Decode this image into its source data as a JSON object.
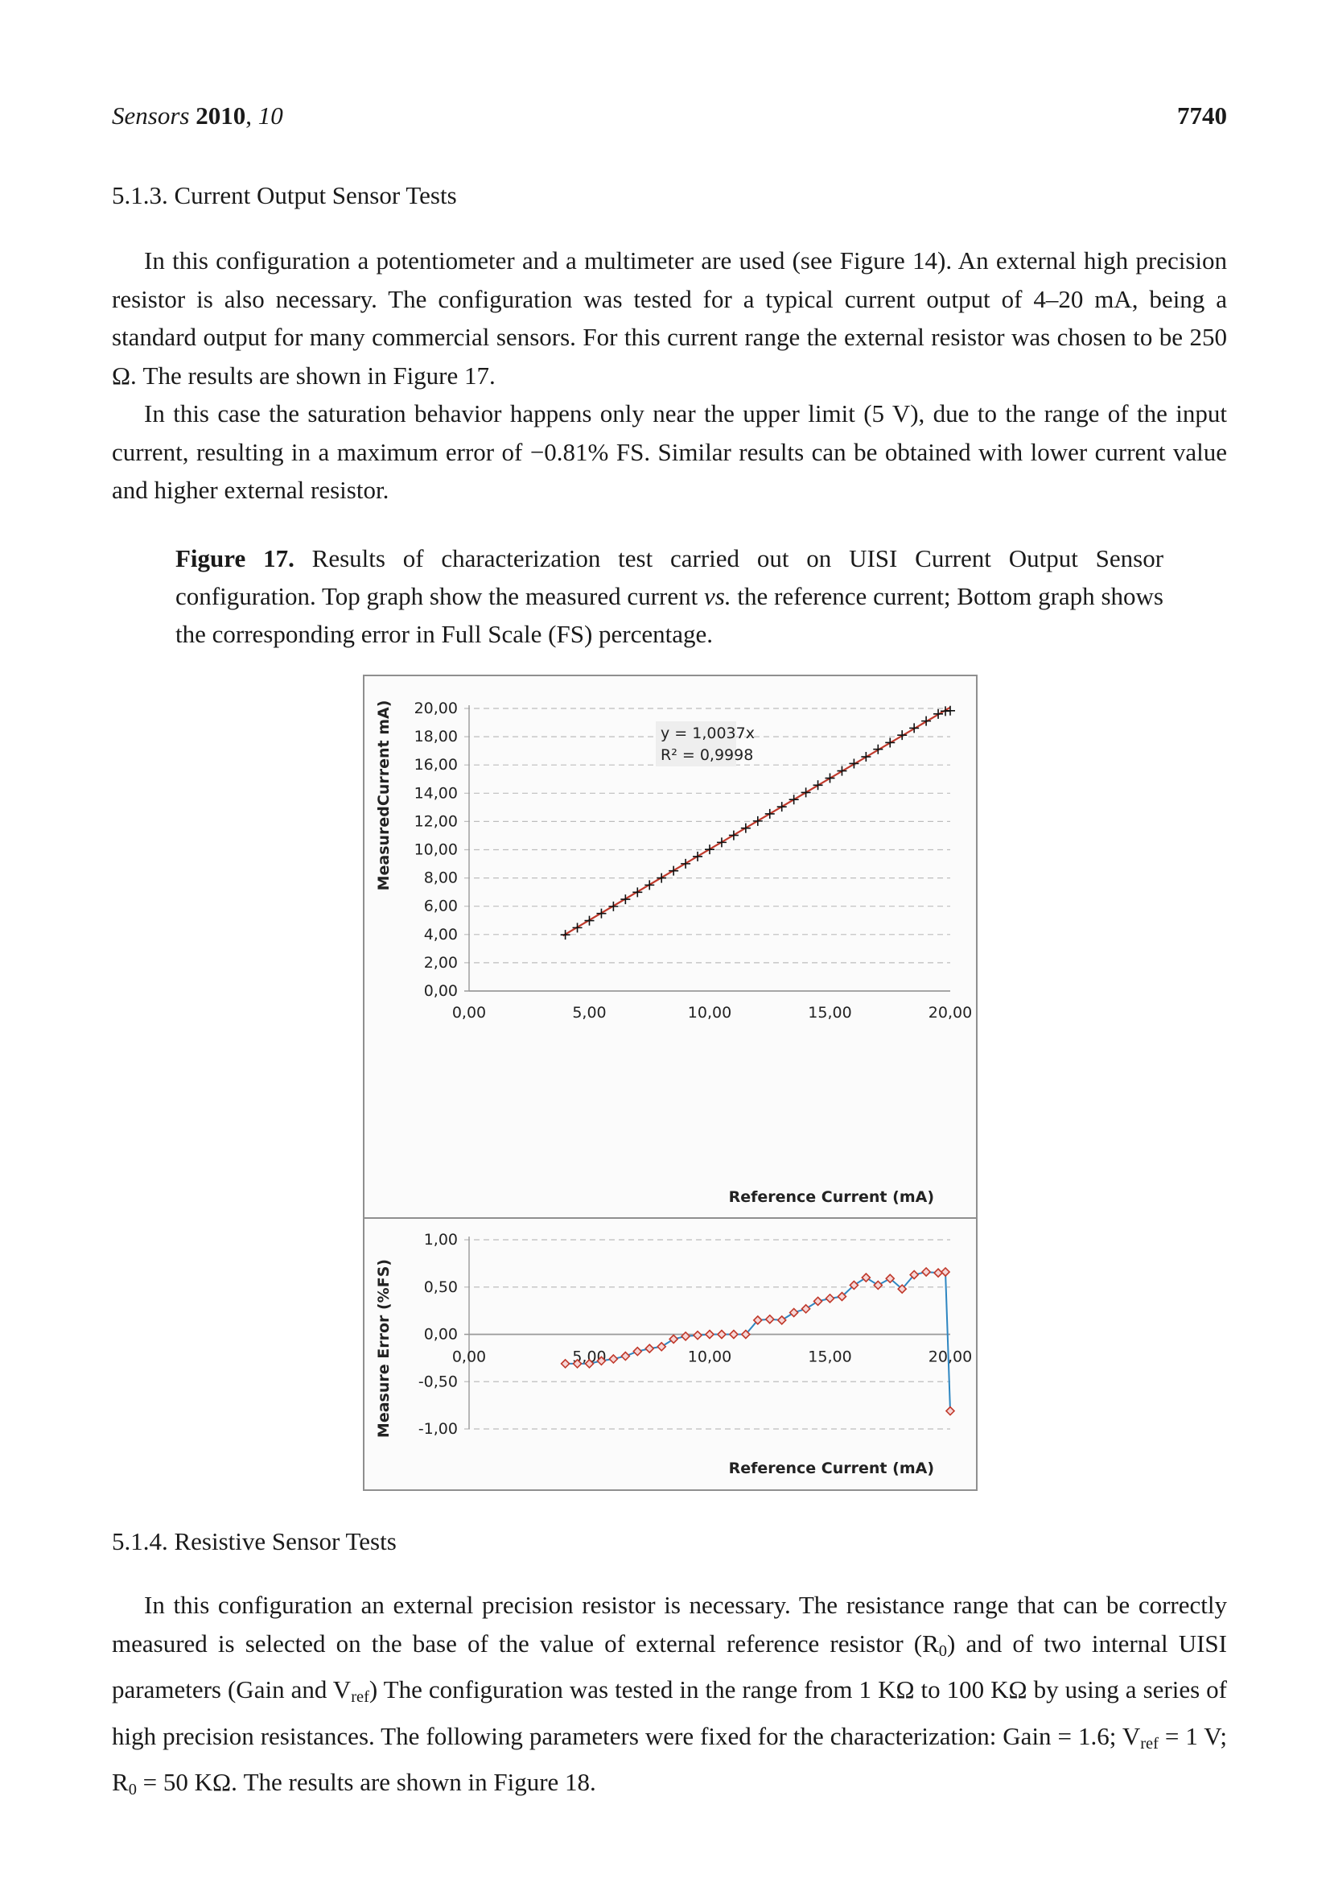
{
  "header": {
    "journal": "Sensors",
    "year": "2010",
    "volume": "10",
    "page": "7740"
  },
  "section_513": {
    "title": "5.1.3. Current Output Sensor Tests",
    "p1": "In this configuration a potentiometer and a multimeter are used (see Figure 14). An external high precision resistor is also necessary. The configuration was tested for a typical current output of 4–20 mA, being a standard output for many commercial sensors. For this current range the external resistor was chosen to be 250 Ω. The results are shown in Figure 17.",
    "p2": "In this case the saturation behavior happens only near the upper limit (5 V), due to the range of the input current, resulting in a maximum error of −0.81% FS. Similar results can be obtained with lower current value and higher external resistor."
  },
  "figure": {
    "label": "Figure 17.",
    "caption_a": "Results of characterization test carried out on UISI Current Output Sensor configuration. Top graph show the measured current ",
    "caption_vs": "vs.",
    "caption_b": " the reference current; Bottom graph shows the corresponding error in Full Scale (FS) percentage."
  },
  "chart_data": [
    {
      "type": "scatter",
      "ylabel": "MeasuredCurrent  mA)",
      "xlabel": "Reference Current (mA)",
      "xlim": [
        0,
        20
      ],
      "ylim": [
        0,
        20
      ],
      "x_ticks": [
        "0,00",
        "5,00",
        "10,00",
        "15,00",
        "20,00"
      ],
      "y_ticks": [
        "0,00",
        "2,00",
        "4,00",
        "6,00",
        "8,00",
        "10,00",
        "12,00",
        "14,00",
        "16,00",
        "18,00",
        "20,00"
      ],
      "grid": "horizontal dashed",
      "marker": "plus",
      "trendline": {
        "equation": "y = 1,0037x",
        "r2": "R² = 0,9998",
        "slope": 1.0037,
        "color": "#c0392b"
      },
      "x": [
        4.0,
        4.5,
        5.0,
        5.5,
        6.0,
        6.5,
        7.0,
        7.5,
        8.0,
        8.5,
        9.0,
        9.5,
        10.0,
        10.5,
        11.0,
        11.5,
        12.0,
        12.5,
        13.0,
        13.5,
        14.0,
        14.5,
        15.0,
        15.5,
        16.0,
        16.5,
        17.0,
        17.5,
        18.0,
        18.5,
        19.0,
        19.5,
        19.8,
        20.0
      ],
      "y": [
        3.98,
        4.48,
        4.98,
        5.49,
        5.99,
        6.49,
        6.99,
        7.5,
        8.0,
        8.51,
        9.01,
        9.52,
        10.02,
        10.52,
        11.02,
        11.53,
        12.03,
        12.54,
        13.04,
        13.55,
        14.05,
        14.57,
        15.07,
        15.58,
        16.1,
        16.58,
        17.11,
        17.58,
        18.11,
        18.61,
        19.11,
        19.61,
        19.81,
        19.84
      ]
    },
    {
      "type": "line",
      "ylabel": "Measure Error (%FS)",
      "xlabel": "Reference Current (mA)",
      "xlim": [
        0,
        20
      ],
      "ylim": [
        -1,
        1
      ],
      "x_ticks": [
        "0,00",
        "5,00",
        "10,00",
        "15,00",
        "20,00"
      ],
      "y_ticks": [
        "-1,00",
        "-0,50",
        "0,00",
        "0,50",
        "1,00"
      ],
      "grid": "horizontal dashed",
      "marker": "diamond",
      "marker_color": "#c0392b",
      "line_color": "#2e86c1",
      "x": [
        4.0,
        4.5,
        5.0,
        5.5,
        6.0,
        6.5,
        7.0,
        7.5,
        8.0,
        8.5,
        9.0,
        9.5,
        10.0,
        10.5,
        11.0,
        11.5,
        12.0,
        12.5,
        13.0,
        13.5,
        14.0,
        14.5,
        15.0,
        15.5,
        16.0,
        16.5,
        17.0,
        17.5,
        18.0,
        18.5,
        19.0,
        19.5,
        19.8,
        20.0
      ],
      "y": [
        -0.31,
        -0.31,
        -0.31,
        -0.28,
        -0.26,
        -0.23,
        -0.18,
        -0.15,
        -0.13,
        -0.05,
        -0.02,
        -0.01,
        0.0,
        0.0,
        0.0,
        0.0,
        0.15,
        0.16,
        0.15,
        0.23,
        0.27,
        0.35,
        0.38,
        0.4,
        0.52,
        0.6,
        0.52,
        0.59,
        0.48,
        0.63,
        0.66,
        0.65,
        0.66,
        -0.81
      ]
    }
  ],
  "section_514": {
    "title": "5.1.4. Resistive Sensor Tests",
    "p1_a": "In this configuration an external precision resistor is necessary. The resistance range that can be correctly measured is selected on the base of the value of external reference resistor (R",
    "sub0": "0",
    "p1_b": ") and of two internal UISI parameters (Gain and V",
    "subref": "ref",
    "p1_c": ") The configuration was tested in the range from 1 KΩ  to 100 KΩ by using a series of high precision resistances. The following parameters were fixed for the characterization: Gain = 1.6; V",
    "p1_d": " = 1 V; R",
    "p1_e": " = 50 KΩ. The results are shown in Figure 18."
  }
}
